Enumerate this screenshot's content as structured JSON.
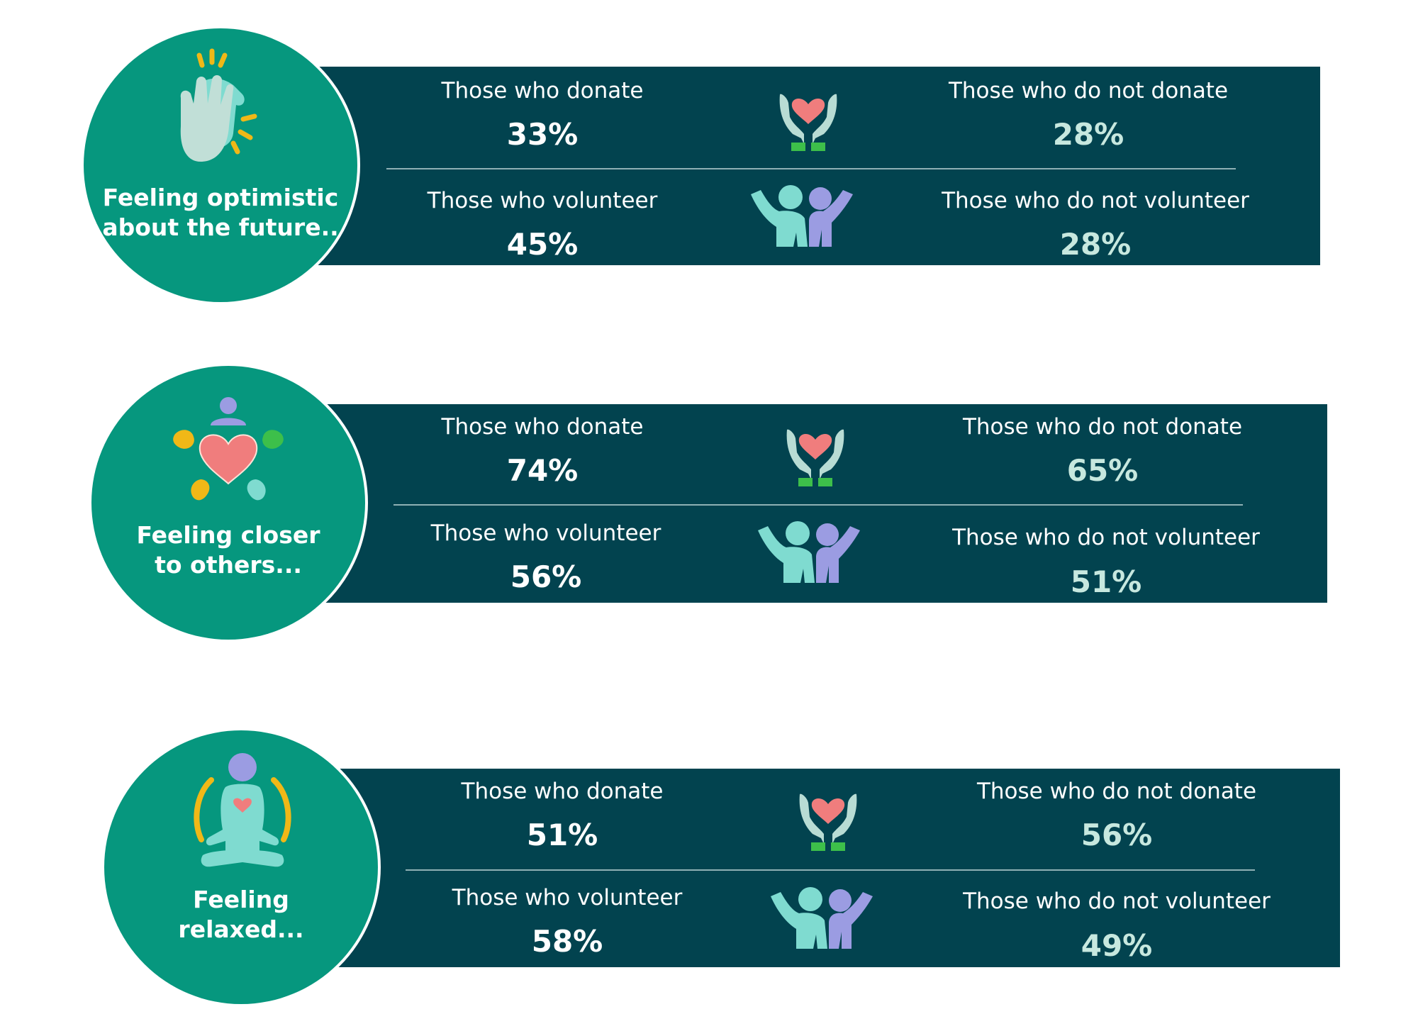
{
  "colors": {
    "bar": "#02434f",
    "circle": "#06977e",
    "value_not": "#c7e8df",
    "heart": "#f07d7d",
    "teal_person": "#7fdbd0",
    "purple_person": "#9b9ce2",
    "green_cuff": "#3dbf4a",
    "yellow": "#f0b817"
  },
  "sections": [
    {
      "title": "Feeling optimistic\nabout the future..",
      "icon": "clapping-hands-icon",
      "donate_label": "Those who donate",
      "donate_value": "33%",
      "not_donate_label": "Those who do not donate",
      "not_donate_value": "28%",
      "volunteer_label": "Those who volunteer",
      "volunteer_value": "45%",
      "not_volunteer_label": "Those who do not volunteer",
      "not_volunteer_value": "28%"
    },
    {
      "title": "Feeling closer\nto others...",
      "icon": "community-heart-icon",
      "donate_label": "Those who donate",
      "donate_value": "74%",
      "not_donate_label": "Those who do not donate",
      "not_donate_value": "65%",
      "volunteer_label": "Those who volunteer",
      "volunteer_value": "56%",
      "not_volunteer_label": "Those who do not volunteer",
      "not_volunteer_value": "51%"
    },
    {
      "title": "Feeling\nrelaxed...",
      "icon": "meditation-icon",
      "donate_label": "Those who donate",
      "donate_value": "51%",
      "not_donate_label": "Those who do not donate",
      "not_donate_value": "56%",
      "volunteer_label": "Those who volunteer",
      "volunteer_value": "58%",
      "not_volunteer_label": "Those who do not volunteer",
      "not_volunteer_value": "49%"
    }
  ]
}
